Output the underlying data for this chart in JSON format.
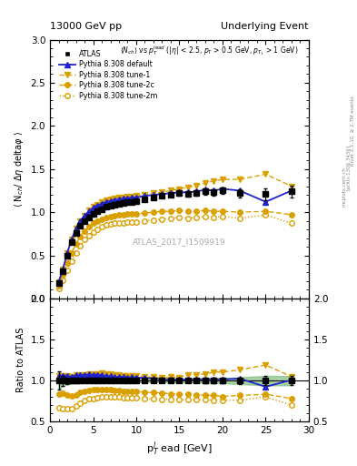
{
  "title_left": "13000 GeV pp",
  "title_right": "Underlying Event",
  "right_label_1": "Rivet 3.1.10, ≥ 2.7M events",
  "right_label_2": "[arXiv:1306.3436]",
  "right_label_3": "mcplots.cern.ch",
  "plot_label": "ATLAS_2017_I1509919",
  "ylabel_main": "⟨ N_{ch}/ Δη deltaφ ⟩",
  "ylabel_ratio": "Ratio to ATLAS",
  "xlabel": "p$_T^l$ ead [GeV]",
  "xlim": [
    0,
    30
  ],
  "ylim_main": [
    0,
    3
  ],
  "ylim_ratio": [
    0.5,
    2
  ],
  "data_x": [
    1.0,
    1.5,
    2.0,
    2.5,
    3.0,
    3.5,
    4.0,
    4.5,
    5.0,
    5.5,
    6.0,
    6.5,
    7.0,
    7.5,
    8.0,
    8.5,
    9.0,
    9.5,
    10.0,
    11.0,
    12.0,
    13.0,
    14.0,
    15.0,
    16.0,
    17.0,
    18.0,
    19.0,
    20.0,
    22.0,
    25.0,
    28.0
  ],
  "atlas_y": [
    0.18,
    0.32,
    0.5,
    0.65,
    0.76,
    0.84,
    0.9,
    0.94,
    0.98,
    1.01,
    1.03,
    1.06,
    1.07,
    1.09,
    1.1,
    1.11,
    1.12,
    1.12,
    1.13,
    1.15,
    1.17,
    1.19,
    1.2,
    1.22,
    1.21,
    1.22,
    1.24,
    1.23,
    1.25,
    1.22,
    1.21,
    1.24
  ],
  "atlas_yerr": [
    0.02,
    0.02,
    0.02,
    0.02,
    0.02,
    0.02,
    0.02,
    0.02,
    0.02,
    0.02,
    0.02,
    0.02,
    0.02,
    0.02,
    0.02,
    0.02,
    0.02,
    0.02,
    0.02,
    0.02,
    0.02,
    0.02,
    0.02,
    0.03,
    0.03,
    0.03,
    0.04,
    0.04,
    0.04,
    0.05,
    0.07,
    0.07
  ],
  "default_y": [
    0.19,
    0.34,
    0.53,
    0.68,
    0.81,
    0.9,
    0.96,
    1.01,
    1.05,
    1.08,
    1.1,
    1.12,
    1.13,
    1.14,
    1.15,
    1.16,
    1.16,
    1.17,
    1.17,
    1.19,
    1.2,
    1.21,
    1.22,
    1.23,
    1.23,
    1.24,
    1.26,
    1.25,
    1.27,
    1.25,
    1.12,
    1.25
  ],
  "tune1_y": [
    0.19,
    0.34,
    0.53,
    0.68,
    0.81,
    0.9,
    0.96,
    1.02,
    1.06,
    1.09,
    1.12,
    1.14,
    1.15,
    1.16,
    1.17,
    1.17,
    1.18,
    1.18,
    1.19,
    1.2,
    1.22,
    1.23,
    1.25,
    1.27,
    1.29,
    1.31,
    1.34,
    1.36,
    1.38,
    1.38,
    1.44,
    1.3
  ],
  "tune2c_y": [
    0.15,
    0.27,
    0.41,
    0.53,
    0.63,
    0.72,
    0.78,
    0.83,
    0.87,
    0.9,
    0.92,
    0.94,
    0.95,
    0.96,
    0.97,
    0.97,
    0.98,
    0.98,
    0.98,
    0.99,
    1.0,
    1.01,
    1.01,
    1.02,
    1.01,
    1.01,
    1.02,
    1.01,
    1.01,
    1.0,
    1.01,
    0.97
  ],
  "tune2m_y": [
    0.12,
    0.21,
    0.33,
    0.43,
    0.53,
    0.61,
    0.68,
    0.73,
    0.77,
    0.8,
    0.83,
    0.85,
    0.86,
    0.87,
    0.88,
    0.88,
    0.89,
    0.89,
    0.89,
    0.9,
    0.91,
    0.92,
    0.93,
    0.94,
    0.93,
    0.94,
    0.95,
    0.94,
    0.95,
    0.93,
    0.97,
    0.87
  ],
  "color_atlas": "#000000",
  "color_default": "#2222cc",
  "color_tune1": "#daa000",
  "color_tune2c": "#daa000",
  "color_tune2m": "#daa000",
  "ratio_band_color": "#7fbf7f",
  "background_color": "#ffffff"
}
